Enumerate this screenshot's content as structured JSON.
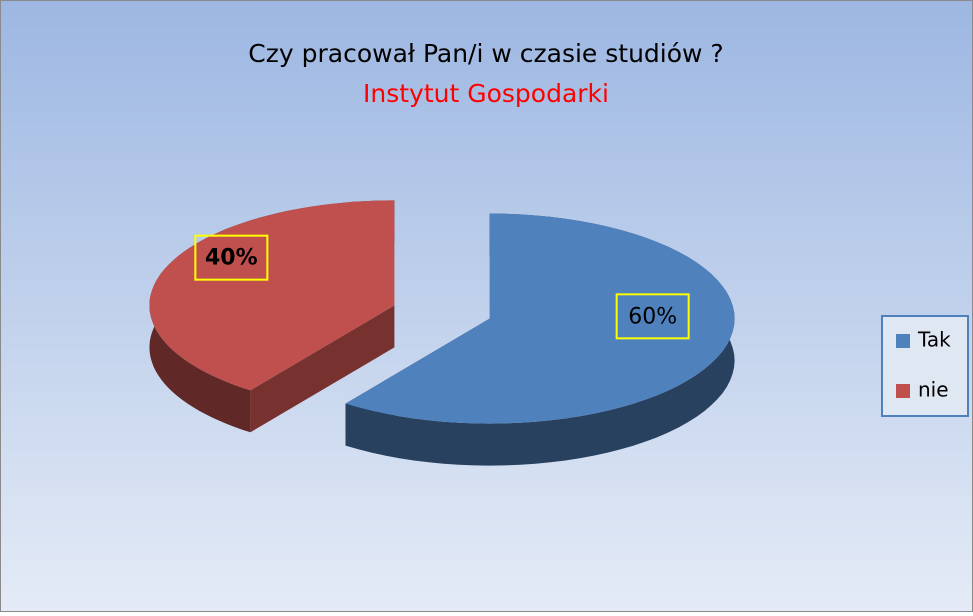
{
  "chart_data": {
    "type": "pie3d",
    "title": "Czy pracował Pan/i w czasie studiów ?",
    "subtitle": "Instytut Gospodarki",
    "categories": [
      "Tak",
      "nie"
    ],
    "values": [
      60,
      40
    ],
    "value_labels": [
      "60%",
      "40%"
    ],
    "colors": [
      "#4f81bd",
      "#c0504d"
    ],
    "legend": "right"
  }
}
